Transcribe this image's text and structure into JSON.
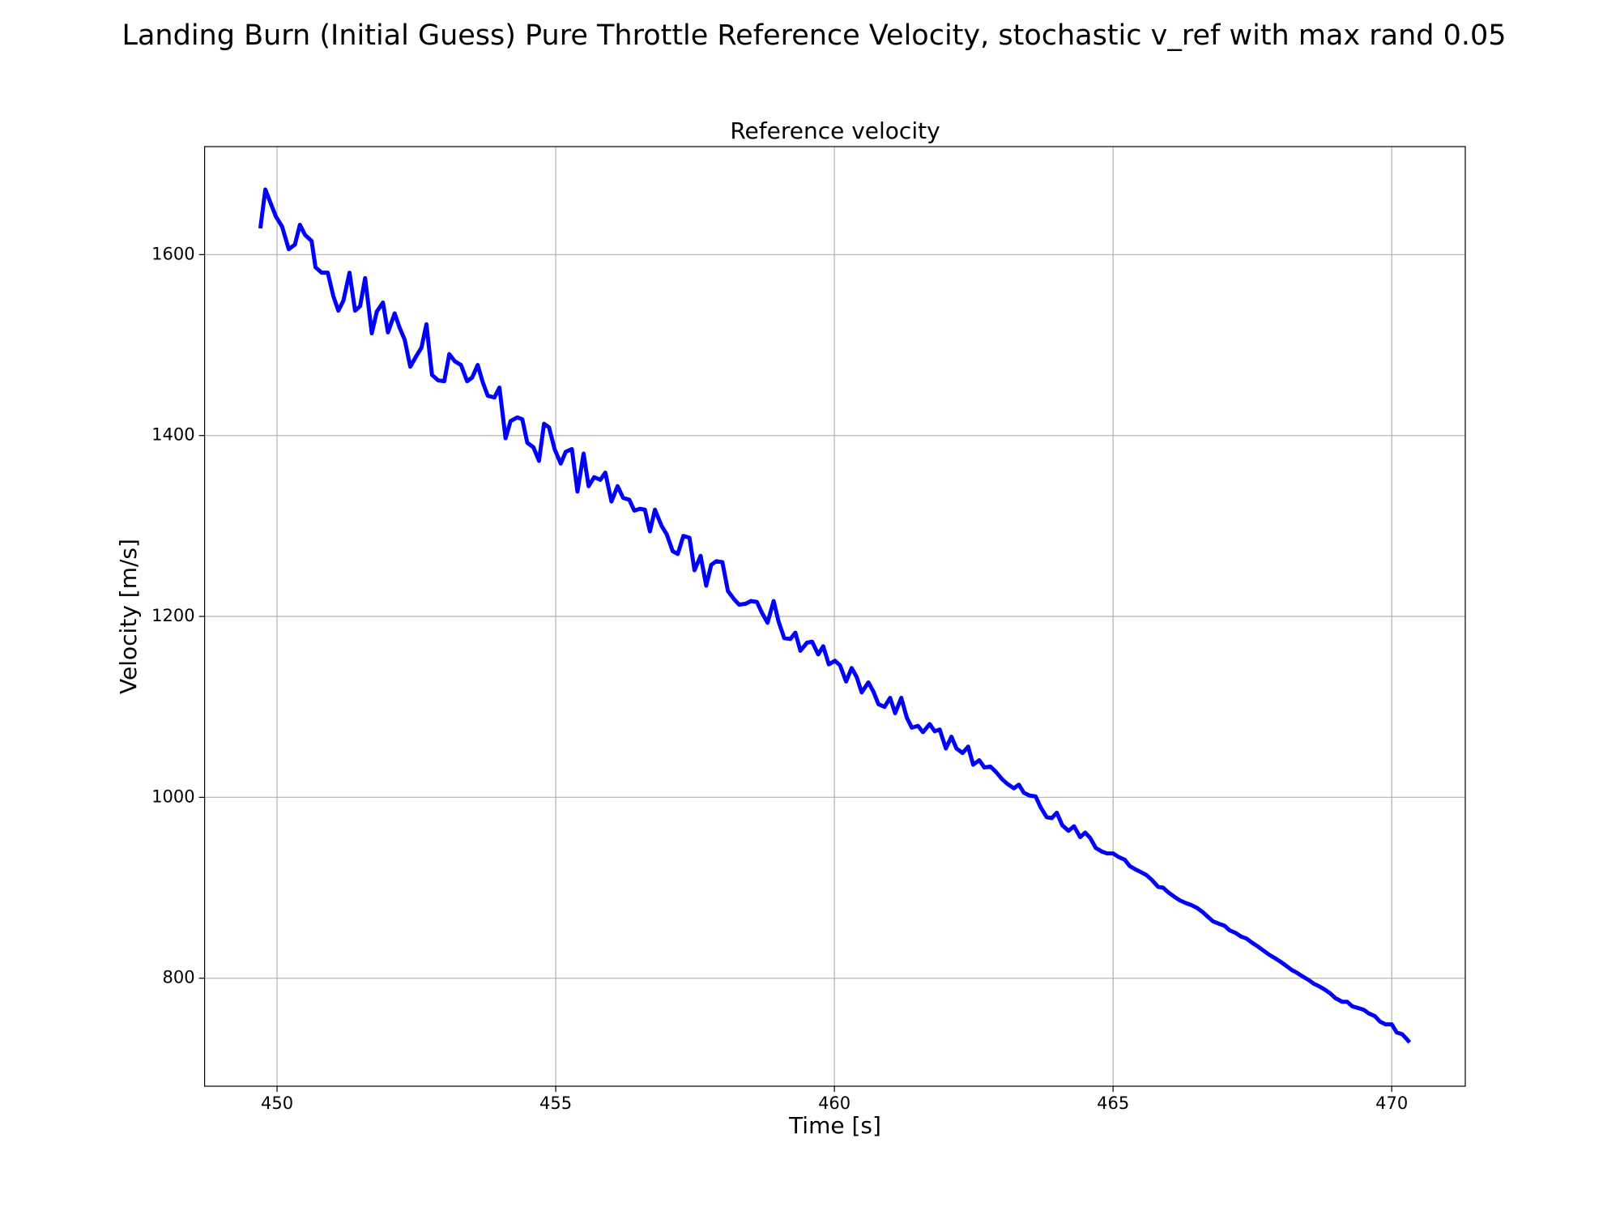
{
  "chart_data": {
    "type": "line",
    "title": "Landing Burn (Initial Guess) Pure Throttle Reference Velocity, stochastic v_ref with max rand 0.05",
    "subtitle": "Reference velocity",
    "x_label": "Time [s]",
    "y_label": "Velocity [m/s]",
    "color": "#0000ff",
    "grid": true,
    "xlim": [
      448.7,
      471.32
    ],
    "ylim": [
      680.6,
      1719.4
    ],
    "xticks": [
      450,
      455,
      460,
      465,
      470
    ],
    "yticks": [
      800,
      1000,
      1200,
      1400,
      1600
    ],
    "x": [
      449.7,
      449.79,
      449.89,
      449.98,
      450.09,
      450.21,
      450.32,
      450.41,
      450.5,
      450.62,
      450.69,
      450.8,
      450.91,
      451.01,
      451.1,
      451.19,
      451.3,
      451.4,
      451.49,
      451.58,
      451.7,
      451.79,
      451.9,
      451.99,
      452.11,
      452.2,
      452.29,
      452.39,
      452.5,
      452.59,
      452.68,
      452.78,
      452.89,
      453.0,
      453.09,
      453.19,
      453.3,
      453.41,
      453.5,
      453.6,
      453.69,
      453.78,
      453.9,
      453.99,
      454.1,
      454.19,
      454.31,
      454.4,
      454.49,
      454.6,
      454.7,
      454.79,
      454.88,
      454.98,
      455.09,
      455.18,
      455.29,
      455.39,
      455.5,
      455.59,
      455.69,
      455.8,
      455.89,
      456.0,
      456.11,
      456.21,
      456.32,
      456.41,
      456.51,
      456.6,
      456.69,
      456.78,
      456.9,
      456.99,
      457.1,
      457.19,
      457.29,
      457.4,
      457.49,
      457.6,
      457.7,
      457.79,
      457.88,
      457.99,
      458.09,
      458.2,
      458.29,
      458.41,
      458.5,
      458.61,
      458.7,
      458.8,
      458.91,
      459.0,
      459.1,
      459.21,
      459.3,
      459.39,
      459.51,
      459.6,
      459.71,
      459.8,
      459.9,
      460.01,
      460.1,
      460.21,
      460.31,
      460.4,
      460.49,
      460.61,
      460.7,
      460.79,
      460.9,
      461.0,
      461.09,
      461.2,
      461.3,
      461.39,
      461.5,
      461.59,
      461.71,
      461.8,
      461.89,
      462.0,
      462.1,
      462.19,
      462.3,
      462.4,
      462.49,
      462.6,
      462.69,
      462.8,
      462.9,
      463.01,
      463.1,
      463.22,
      463.31,
      463.4,
      463.5,
      463.61,
      463.7,
      463.81,
      463.9,
      463.99,
      464.09,
      464.2,
      464.3,
      464.41,
      464.5,
      464.59,
      464.69,
      464.8,
      464.89,
      465.0,
      465.1,
      465.21,
      465.3,
      465.41,
      465.51,
      465.6,
      465.69,
      465.81,
      465.9,
      465.99,
      466.1,
      466.2,
      466.31,
      466.4,
      466.5,
      466.61,
      466.7,
      466.79,
      466.91,
      467.0,
      467.09,
      467.2,
      467.3,
      467.39,
      467.5,
      467.6,
      467.71,
      467.8,
      467.91,
      468.01,
      468.1,
      468.21,
      468.3,
      468.4,
      468.51,
      468.6,
      468.7,
      468.81,
      468.9,
      468.99,
      469.11,
      469.2,
      469.29,
      469.4,
      469.5,
      469.59,
      469.7,
      469.79,
      469.89,
      470.0,
      470.09,
      470.19,
      470.28,
      470.32
    ],
    "values": [
      1629,
      1672,
      1656,
      1642,
      1631,
      1606,
      1611,
      1633,
      1622,
      1615,
      1586,
      1580,
      1580,
      1554,
      1538,
      1549,
      1580,
      1538,
      1543,
      1574,
      1513,
      1537,
      1547,
      1514,
      1535,
      1519,
      1506,
      1476,
      1488,
      1497,
      1523,
      1467,
      1461,
      1460,
      1490,
      1482,
      1478,
      1460,
      1464,
      1478,
      1459,
      1444,
      1442,
      1453,
      1397,
      1416,
      1420,
      1418,
      1392,
      1387,
      1372,
      1413,
      1409,
      1385,
      1369,
      1382,
      1385,
      1338,
      1380,
      1344,
      1354,
      1351,
      1359,
      1327,
      1344,
      1331,
      1329,
      1317,
      1319,
      1318,
      1294,
      1318,
      1300,
      1291,
      1272,
      1269,
      1289,
      1287,
      1251,
      1267,
      1234,
      1257,
      1261,
      1260,
      1228,
      1219,
      1213,
      1214,
      1217,
      1216,
      1204,
      1193,
      1217,
      1194,
      1176,
      1175,
      1182,
      1162,
      1171,
      1172,
      1158,
      1167,
      1147,
      1151,
      1146,
      1128,
      1143,
      1133,
      1116,
      1127,
      1117,
      1103,
      1100,
      1110,
      1093,
      1110,
      1088,
      1077,
      1079,
      1072,
      1081,
      1073,
      1075,
      1054,
      1067,
      1054,
      1049,
      1056,
      1036,
      1041,
      1033,
      1034,
      1028,
      1020,
      1015,
      1010,
      1014,
      1005,
      1002,
      1001,
      989,
      978,
      977,
      983,
      969,
      963,
      968,
      956,
      961,
      955,
      944,
      940,
      938,
      938,
      934,
      931,
      924,
      920,
      917,
      914,
      909,
      901,
      900,
      895,
      890,
      886,
      883,
      881,
      878,
      873,
      868,
      863,
      860,
      858,
      853,
      850,
      846,
      844,
      839,
      835,
      830,
      826,
      822,
      818,
      814,
      809,
      806,
      802,
      798,
      794,
      791,
      787,
      783,
      778,
      774,
      774,
      769,
      767,
      765,
      761,
      758,
      752,
      749,
      749,
      740,
      738,
      732,
      729
    ]
  }
}
